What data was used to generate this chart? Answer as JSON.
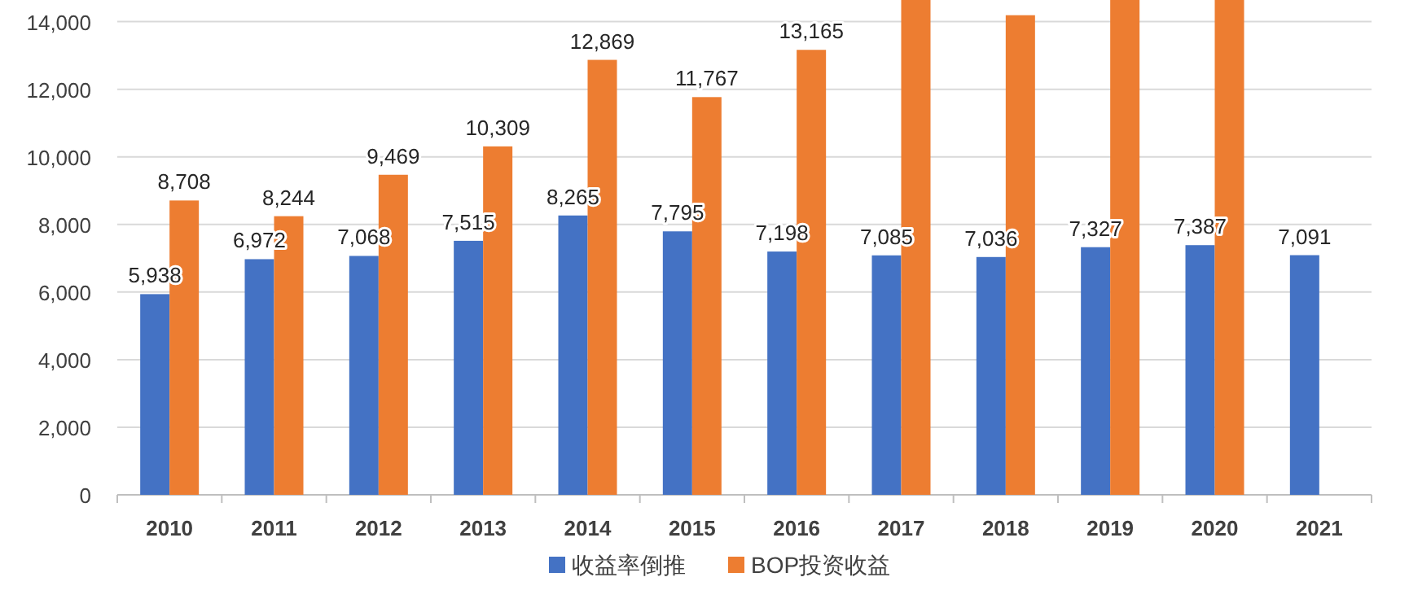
{
  "chart_data": {
    "type": "bar",
    "categories": [
      "2010",
      "2011",
      "2012",
      "2013",
      "2014",
      "2015",
      "2016",
      "2017",
      "2018",
      "2019",
      "2020",
      "2021"
    ],
    "series": [
      {
        "name": "收益率倒推",
        "color": "#4472c4",
        "values": [
          5938,
          6972,
          7068,
          7515,
          8265,
          7795,
          7198,
          7085,
          7036,
          7327,
          7387,
          7091
        ],
        "value_labels": [
          "5,938",
          "6,972",
          "7,068",
          "7,515",
          "8,265",
          "7,795",
          "7,198",
          "7,085",
          "7,036",
          "7,327",
          "7,387",
          "7,091"
        ]
      },
      {
        "name": "BOP投资收益",
        "color": "#ed7d31",
        "values": [
          8708,
          8244,
          9469,
          10309,
          12869,
          11767,
          13165,
          14640,
          14190,
          14640,
          14640,
          null
        ],
        "value_labels": [
          "8,708",
          "8,244",
          "9,469",
          "10,309",
          "12,869",
          "11,767",
          "13,165",
          null,
          null,
          null,
          null,
          null
        ]
      }
    ],
    "ylim": [
      0,
      14640
    ],
    "yticks": [
      0,
      {
        "value": 2000,
        "label": "2,000"
      },
      {
        "value": 4000,
        "label": "4,000"
      },
      {
        "value": 6000,
        "label": "6,000"
      },
      {
        "value": 8000,
        "label": "8,000"
      },
      {
        "value": 10000,
        "label": "10,000"
      },
      {
        "value": 12000,
        "label": "12,000"
      },
      {
        "value": 14000,
        "label": "14,000"
      }
    ],
    "grid": "y",
    "legend": "bottom"
  }
}
